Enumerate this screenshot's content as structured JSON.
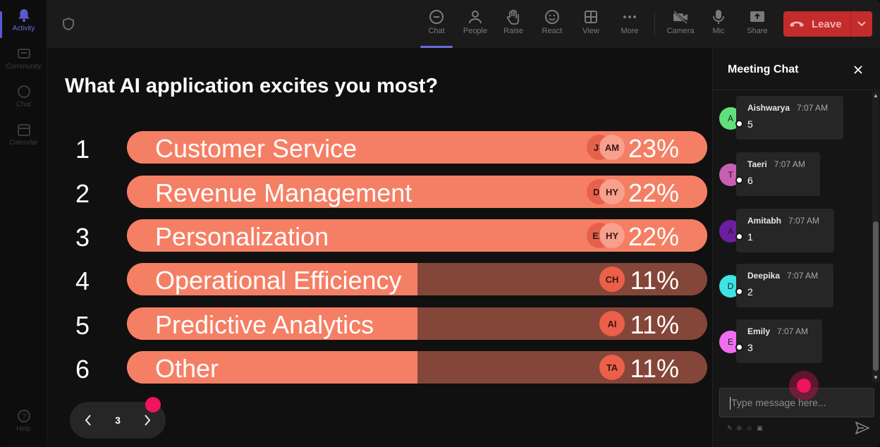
{
  "rail": {
    "items": [
      {
        "label": "Activity",
        "icon": "bell-icon",
        "active": true
      },
      {
        "label": "Community",
        "icon": "community-icon",
        "active": false
      },
      {
        "label": "Chat",
        "icon": "chat-icon",
        "active": false
      },
      {
        "label": "Calendar",
        "icon": "calendar-icon",
        "active": false
      }
    ],
    "help": "Help"
  },
  "toolbar": {
    "chat": "Chat",
    "people": "People",
    "raise": "Raise",
    "react": "React",
    "view": "View",
    "more": "More",
    "camera": "Camera",
    "mic": "Mic",
    "share": "Share",
    "leave": "Leave"
  },
  "poll": {
    "question": "What AI application excites you most?",
    "options": [
      {
        "rank": "1",
        "label": "Customer Service",
        "percent": "23%",
        "share": 1.0,
        "avatars": [
          "JU",
          "AM"
        ]
      },
      {
        "rank": "2",
        "label": "Revenue Management",
        "percent": "22%",
        "share": 1.0,
        "avatars": [
          "DE",
          "HY"
        ]
      },
      {
        "rank": "3",
        "label": "Personalization",
        "percent": "22%",
        "share": 1.0,
        "avatars": [
          "EM",
          "HY"
        ]
      },
      {
        "rank": "4",
        "label": "Operational Efficiency",
        "percent": "11%",
        "share": 0.5,
        "avatars": [
          "CH"
        ]
      },
      {
        "rank": "5",
        "label": "Predictive Analytics",
        "percent": "11%",
        "share": 0.5,
        "avatars": [
          "AI"
        ]
      },
      {
        "rank": "6",
        "label": "Other",
        "percent": "11%",
        "share": 0.5,
        "avatars": [
          "TA"
        ]
      }
    ],
    "page": "3"
  },
  "chat": {
    "title": "Meeting Chat",
    "messages": [
      {
        "initial": "A",
        "name": "Aishwarya",
        "time": "7:07 AM",
        "text": "5",
        "color": "#5fe07a"
      },
      {
        "initial": "T",
        "name": "Taeri",
        "time": "7:07 AM",
        "text": "6",
        "color": "#c95fb3"
      },
      {
        "initial": "A",
        "name": "Amitabh",
        "time": "7:07 AM",
        "text": "1",
        "color": "#6b1fa0"
      },
      {
        "initial": "D",
        "name": "Deepika",
        "time": "7:07 AM",
        "text": "2",
        "color": "#3ee3e6"
      },
      {
        "initial": "E",
        "name": "Emily",
        "time": "7:07 AM",
        "text": "3",
        "color": "#f06ef0"
      }
    ],
    "input_placeholder": "Type message here..."
  },
  "colors": {
    "bar_fill": "#f57f64",
    "bar_track": "#85463a",
    "leave": "#c42b2b",
    "accent": "#6b6bd9",
    "cursor_pink": "#f0135f"
  }
}
